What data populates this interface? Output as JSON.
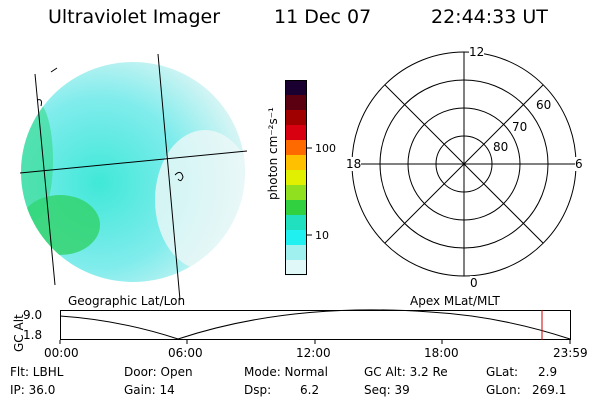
{
  "header": {
    "title": "Ultraviolet Imager",
    "date": "11 Dec 07",
    "time": "22:44:33 UT"
  },
  "colorbar": {
    "unit_label": "photon cm⁻²s⁻¹",
    "ticks": [
      "100",
      "10"
    ],
    "colors": [
      "#1a0030",
      "#5a0010",
      "#a00000",
      "#d80010",
      "#ff6a00",
      "#ffc000",
      "#e0f000",
      "#90e020",
      "#30d040",
      "#20e0c0",
      "#20f0f0",
      "#a0f0f0",
      "#e0f8f8"
    ]
  },
  "polar_plot": {
    "mlt_labels": {
      "top": "12",
      "right": "6",
      "bottom": "0",
      "left": "18"
    },
    "lat_labels": [
      "60",
      "70",
      "80"
    ]
  },
  "panels": {
    "left_caption": "Geographic Lat/Lon",
    "right_caption": "Apex MLat/MLT"
  },
  "altitude_strip": {
    "axis_label": "GC Alt",
    "y_ticks": [
      "9.0",
      "1.8"
    ],
    "x_ticks": [
      "00:00",
      "06:00",
      "12:00",
      "18:00",
      "23:59"
    ],
    "marker_color": "#cc0000"
  },
  "info": {
    "row1": {
      "flt": "Flt: LBHL",
      "door": "Door: Open",
      "mode": "Mode: Normal",
      "gcalt": "GC Alt: 3.2 Re",
      "glat_label": "GLat:",
      "glat_value": "2.9"
    },
    "row2": {
      "ip": "IP: 36.0",
      "gain": "Gain: 14",
      "dsp_label": "Dsp:",
      "dsp_value": "6.2",
      "seq": "Seq: 39",
      "glon_label": "GLon:",
      "glon_value": "269.1"
    }
  }
}
